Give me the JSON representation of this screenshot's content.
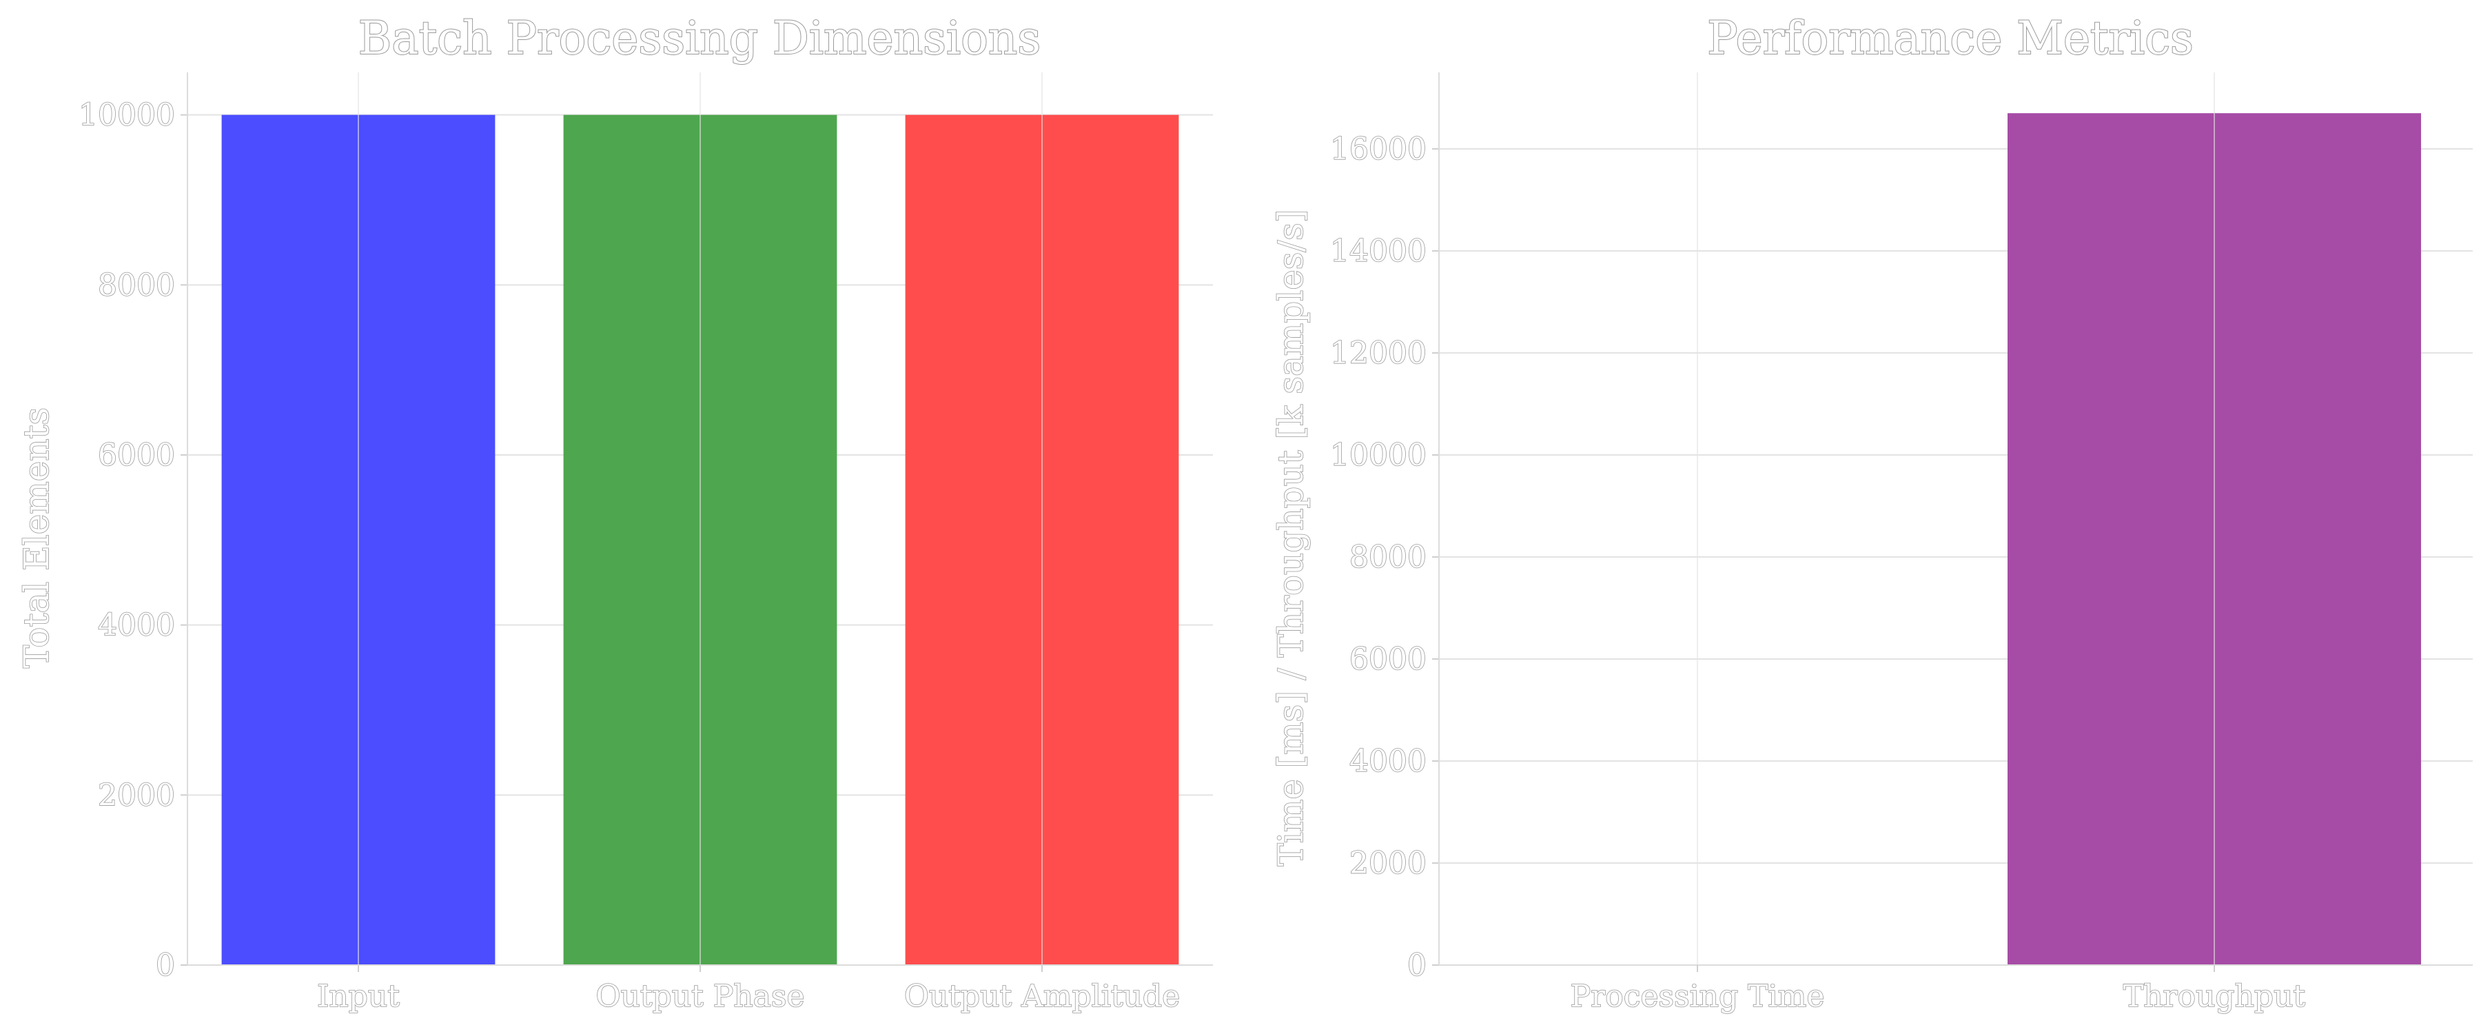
{
  "chart_data": [
    {
      "type": "bar",
      "title": "Batch Processing Dimensions",
      "xlabel": "",
      "ylabel": "Total Elements",
      "categories": [
        "Input",
        "Output Phase",
        "Output Amplitude"
      ],
      "values": [
        10000,
        10000,
        10000
      ],
      "colors": [
        "#4b4dff",
        "#4ea64e",
        "#ff4d4d"
      ],
      "ylim": [
        0,
        10500
      ],
      "yticks": [
        0,
        2000,
        4000,
        6000,
        8000,
        10000
      ],
      "grid": true,
      "legend": "none"
    },
    {
      "type": "bar",
      "title": "Performance Metrics",
      "xlabel": "",
      "ylabel": "Time [ms] / Throughput [k samples/s]",
      "categories": [
        "Processing Time",
        "Throughput"
      ],
      "values": [
        0.6,
        16700
      ],
      "colors": [
        "#a64ca6",
        "#a64ca6"
      ],
      "ylim": [
        0,
        17500
      ],
      "yticks": [
        0,
        2000,
        4000,
        6000,
        8000,
        10000,
        12000,
        14000,
        16000
      ],
      "grid": true,
      "legend": "none"
    }
  ]
}
